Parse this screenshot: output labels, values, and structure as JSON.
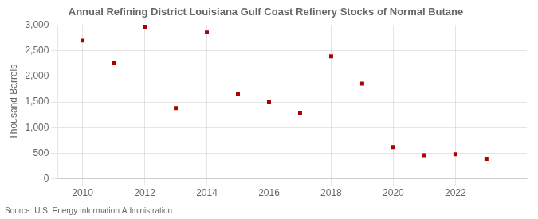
{
  "chart_data": {
    "type": "scatter",
    "title": "Annual Refining District Louisiana Gulf Coast Refinery Stocks of Normal Butane",
    "ylabel": "Thousand Barrels",
    "annotations": [
      "Source: U.S. Energy Information Administration"
    ],
    "x": [
      2010,
      2011,
      2012,
      2013,
      2014,
      2015,
      2016,
      2017,
      2018,
      2019,
      2020,
      2021,
      2022,
      2023
    ],
    "values": [
      2700,
      2260,
      2970,
      1380,
      2860,
      1650,
      1510,
      1290,
      2390,
      1860,
      620,
      460,
      480,
      390
    ],
    "color": "#aa0000",
    "marker": "square",
    "xlim": [
      2009.2,
      2024.3
    ],
    "xticks": [
      2010,
      2012,
      2014,
      2016,
      2018,
      2020,
      2022
    ],
    "ylim": [
      0,
      3000
    ],
    "yticks": [
      0,
      500,
      {
        "value": 1000,
        "label": "1,000"
      },
      {
        "value": 1500,
        "label": "1,500"
      },
      {
        "value": 2000,
        "label": "2,000"
      },
      {
        "value": 2500,
        "label": "2,500"
      },
      {
        "value": 3000,
        "label": "3,000"
      }
    ],
    "grid": true
  }
}
